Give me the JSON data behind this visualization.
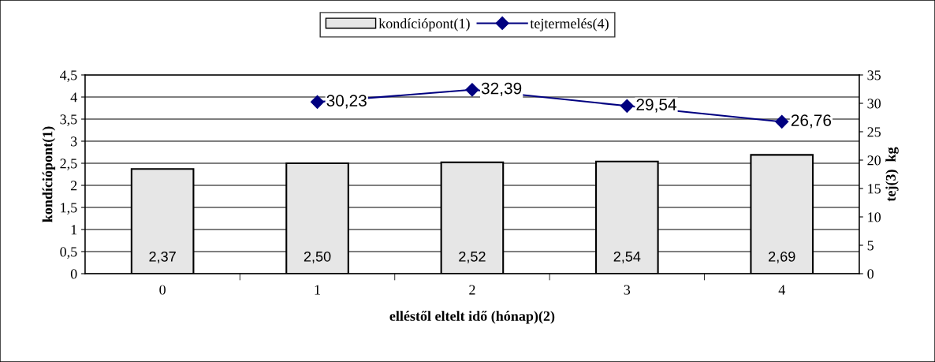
{
  "chart_data": {
    "type": "bar",
    "categories": [
      "0",
      "1",
      "2",
      "3",
      "4"
    ],
    "xlabel": "elléstől eltelt idő (hónap)(2)",
    "ylabel": "kondíciópont(1)",
    "y2label": "tej(3)  kg",
    "ylim": [
      0,
      4.5
    ],
    "yticks": [
      0,
      {
        "value": 0.5,
        "label": "0,5"
      },
      1,
      {
        "value": 1.5,
        "label": "1,5"
      },
      2,
      {
        "value": 2.5,
        "label": "2,5"
      },
      3,
      {
        "value": 3.5,
        "label": "3,5"
      },
      4,
      {
        "value": 4.5,
        "label": "4,5"
      }
    ],
    "y2lim": [
      0,
      35
    ],
    "y2ticks": [
      0,
      5,
      10,
      15,
      20,
      25,
      30,
      35
    ],
    "grid": "y",
    "legend": "top",
    "series": [
      {
        "name": "kondíciópont(1)",
        "color": "#e6e6e6",
        "values": [
          2.37,
          2.5,
          2.52,
          2.54,
          2.69
        ],
        "value_labels": [
          "2,37",
          "2,50",
          "2,52",
          "2,54",
          "2,69"
        ]
      },
      {
        "name": "tejtermelés(4)",
        "type": "line",
        "axis": "y2",
        "color": "#000080",
        "marker": "diamond",
        "line_style": "solid",
        "values": [
          null,
          30.23,
          32.39,
          29.54,
          26.76
        ],
        "value_labels": [
          null,
          "30,23",
          "32,39",
          "29,54",
          "26,76"
        ]
      }
    ]
  }
}
